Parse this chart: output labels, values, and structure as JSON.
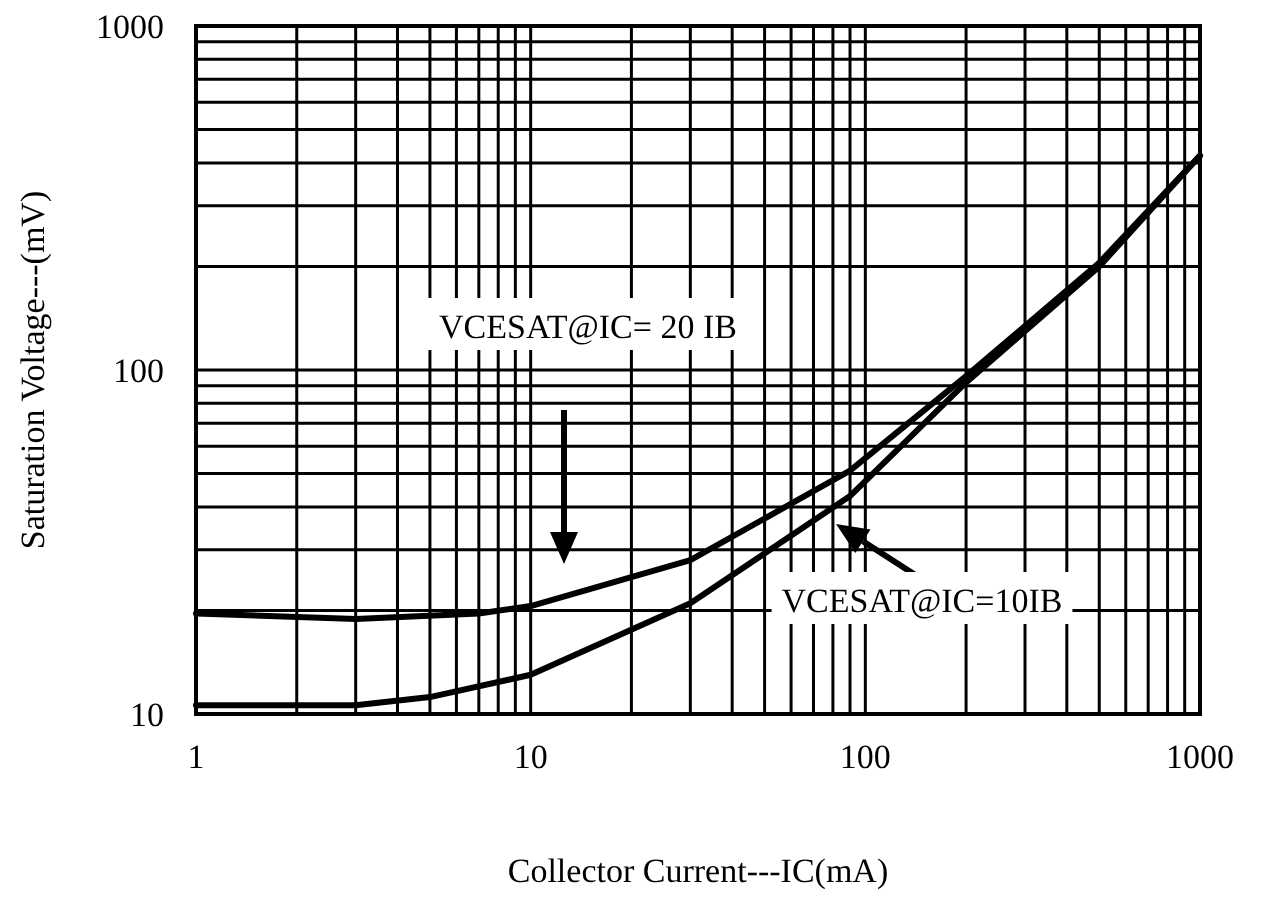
{
  "chart_data": {
    "type": "line",
    "xlabel": "Collector Current---IC(mA)",
    "ylabel": "Saturation Voltage---(mV)",
    "log": "xy",
    "grid": true,
    "marker": "none",
    "line_style": "solid",
    "xlim": [
      1,
      1000
    ],
    "ylim": [
      10,
      1000
    ],
    "xticks": [
      1,
      {
        "value": 2,
        "label": null
      },
      {
        "value": 3,
        "label": null
      },
      {
        "value": 4,
        "label": null
      },
      {
        "value": 5,
        "label": null
      },
      {
        "value": 6,
        "label": null
      },
      {
        "value": 7,
        "label": null
      },
      {
        "value": 8,
        "label": null
      },
      {
        "value": 9,
        "label": null
      },
      10,
      {
        "value": 20,
        "label": null
      },
      {
        "value": 30,
        "label": null
      },
      {
        "value": 40,
        "label": null
      },
      {
        "value": 50,
        "label": null
      },
      {
        "value": 60,
        "label": null
      },
      {
        "value": 70,
        "label": null
      },
      {
        "value": 80,
        "label": null
      },
      {
        "value": 90,
        "label": null
      },
      100,
      {
        "value": 200,
        "label": null
      },
      {
        "value": 300,
        "label": null
      },
      {
        "value": 400,
        "label": null
      },
      {
        "value": 500,
        "label": null
      },
      {
        "value": 600,
        "label": null
      },
      {
        "value": 700,
        "label": null
      },
      {
        "value": 800,
        "label": null
      },
      {
        "value": 900,
        "label": null
      },
      1000
    ],
    "yticks": [
      10,
      {
        "value": 20,
        "label": null
      },
      {
        "value": 30,
        "label": null
      },
      {
        "value": 40,
        "label": null
      },
      {
        "value": 50,
        "label": null
      },
      {
        "value": 60,
        "label": null
      },
      {
        "value": 70,
        "label": null
      },
      {
        "value": 80,
        "label": null
      },
      {
        "value": 90,
        "label": null
      },
      100,
      {
        "value": 200,
        "label": null
      },
      {
        "value": 300,
        "label": null
      },
      {
        "value": 400,
        "label": null
      },
      {
        "value": 500,
        "label": null
      },
      {
        "value": 600,
        "label": null
      },
      {
        "value": 700,
        "label": null
      },
      {
        "value": 800,
        "label": null
      },
      {
        "value": 900,
        "label": null
      },
      1000
    ],
    "series": [
      {
        "color": "#000000",
        "x": [
          1,
          3,
          7,
          10,
          30,
          90,
          200,
          500,
          1000
        ],
        "values": [
          19.6,
          18.9,
          19.6,
          20.6,
          28,
          51,
          96,
          205,
          420
        ]
      },
      {
        "color": "#000000",
        "x": [
          1,
          3,
          5,
          10,
          30,
          90,
          200,
          500,
          1000
        ],
        "values": [
          10.6,
          10.6,
          11.2,
          13,
          21,
          43,
          92,
          200,
          420
        ]
      }
    ],
    "annotations": [
      "VCESAT@IC= 20 IB",
      "VCESAT@IC=10IB"
    ]
  }
}
